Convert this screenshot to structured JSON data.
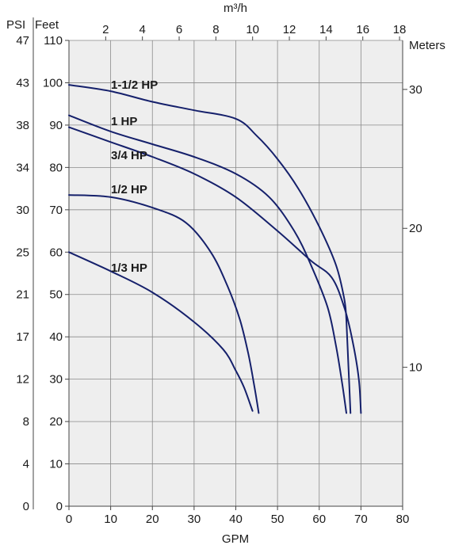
{
  "chart_data": {
    "type": "line",
    "xlabel": "GPM",
    "xlim": [
      0,
      80
    ],
    "x_ticks": [
      "0",
      "10",
      "20",
      "30",
      "40",
      "50",
      "60",
      "70",
      "80"
    ],
    "top_axis": {
      "label": "m³/h",
      "ticks": [
        "2",
        "4",
        "6",
        "8",
        "10",
        "12",
        "14",
        "16",
        "18"
      ]
    },
    "left_outer_axis": {
      "label": "PSI",
      "ticks": [
        "0",
        "4",
        "8",
        "12",
        "17",
        "21",
        "25",
        "30",
        "34",
        "38",
        "43",
        "47"
      ]
    },
    "ylabel": "Feet",
    "ylim": [
      0,
      110
    ],
    "y_ticks": [
      "0",
      "10",
      "20",
      "30",
      "40",
      "50",
      "60",
      "70",
      "80",
      "90",
      "100",
      "110"
    ],
    "right_axis": {
      "label": "Meters",
      "ticks": [
        "10",
        "20",
        "30"
      ]
    },
    "grid": true,
    "curve_color": "#15206b",
    "plot_background": "#eeeeee",
    "series": [
      {
        "name": "1-1/2 HP",
        "points": [
          [
            0,
            99.5
          ],
          [
            10,
            98
          ],
          [
            20,
            95.5
          ],
          [
            30,
            93.5
          ],
          [
            40,
            91.5
          ],
          [
            45,
            87.5
          ],
          [
            50,
            82
          ],
          [
            55,
            75
          ],
          [
            60,
            66
          ],
          [
            64,
            57
          ],
          [
            66,
            49
          ],
          [
            66.5,
            44
          ],
          [
            67,
            33
          ],
          [
            67.5,
            22
          ]
        ]
      },
      {
        "name": "1 HP",
        "points": [
          [
            0,
            92.3
          ],
          [
            10,
            88.5
          ],
          [
            20,
            85.5
          ],
          [
            30,
            82.5
          ],
          [
            40,
            78.5
          ],
          [
            48,
            73
          ],
          [
            54,
            65
          ],
          [
            58,
            57
          ],
          [
            62,
            47
          ],
          [
            64,
            38
          ],
          [
            65.5,
            29
          ],
          [
            66.5,
            22
          ]
        ]
      },
      {
        "name": "3/4 HP",
        "points": [
          [
            0,
            89.5
          ],
          [
            10,
            86
          ],
          [
            20,
            82.5
          ],
          [
            30,
            78.5
          ],
          [
            40,
            73
          ],
          [
            50,
            65
          ],
          [
            58,
            58
          ],
          [
            63,
            54
          ],
          [
            66,
            47
          ],
          [
            68,
            39
          ],
          [
            69.5,
            30
          ],
          [
            70,
            22
          ]
        ]
      },
      {
        "name": "1/2 HP",
        "points": [
          [
            0,
            73.5
          ],
          [
            10,
            73
          ],
          [
            20,
            70.5
          ],
          [
            28,
            67
          ],
          [
            34,
            60
          ],
          [
            38,
            52
          ],
          [
            41,
            44
          ],
          [
            43,
            36
          ],
          [
            44.5,
            28
          ],
          [
            45.5,
            22
          ]
        ]
      },
      {
        "name": "1/3 HP",
        "points": [
          [
            0,
            60
          ],
          [
            10,
            55.5
          ],
          [
            20,
            50.5
          ],
          [
            30,
            43.5
          ],
          [
            37,
            37
          ],
          [
            40,
            32
          ],
          [
            42,
            28
          ],
          [
            44,
            22.5
          ]
        ]
      }
    ]
  }
}
